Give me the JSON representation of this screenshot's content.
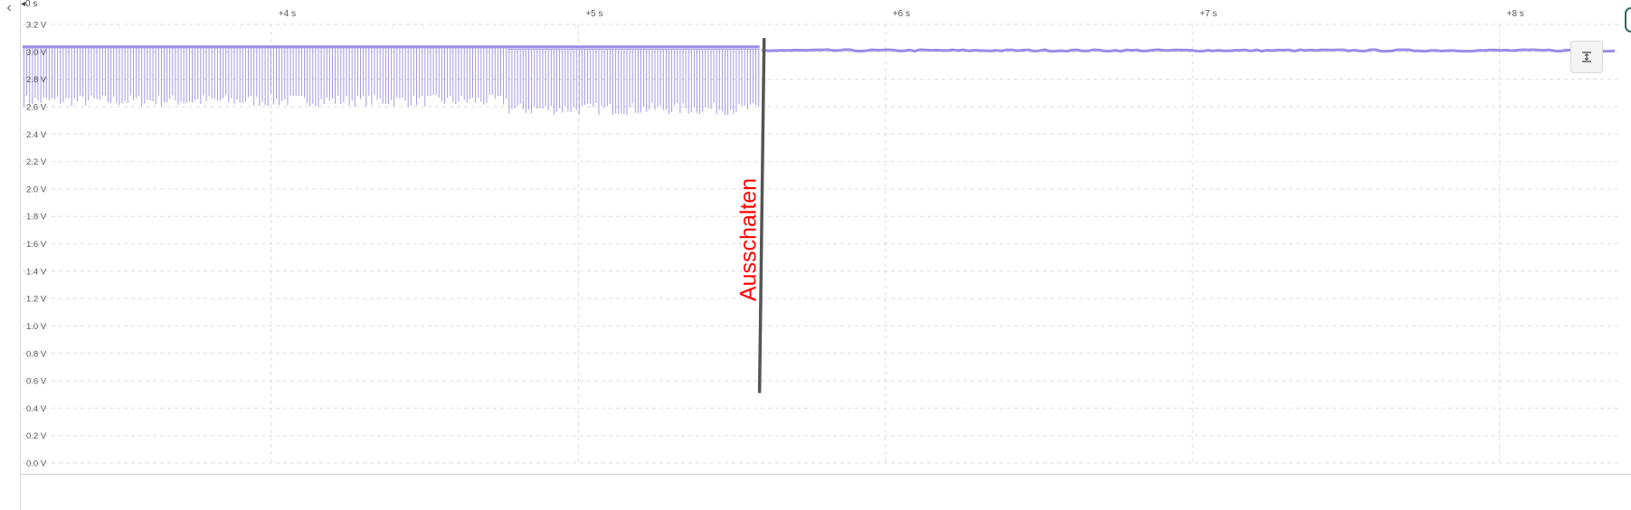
{
  "chart_data": {
    "type": "line",
    "origin_label": "0 s",
    "x_ticks": [
      {
        "value": 3,
        "label": ""
      },
      {
        "value": 4,
        "label": "+4 s"
      },
      {
        "value": 5,
        "label": "+5 s"
      },
      {
        "value": 6,
        "label": "+6 s"
      },
      {
        "value": 7,
        "label": "+7 s"
      },
      {
        "value": 8,
        "label": "+8 s"
      }
    ],
    "xlim": [
      3.19,
      8.39
    ],
    "ylim": [
      0.0,
      3.2
    ],
    "y_ticks": [
      {
        "value": 3.2,
        "label": "3.2 V"
      },
      {
        "value": 3.0,
        "label": "3.0 V"
      },
      {
        "value": 2.8,
        "label": "2.8 V"
      },
      {
        "value": 2.6,
        "label": "2.6 V"
      },
      {
        "value": 2.4,
        "label": "2.4 V"
      },
      {
        "value": 2.2,
        "label": "2.2 V"
      },
      {
        "value": 2.0,
        "label": "2.0 V"
      },
      {
        "value": 1.8,
        "label": "1.8 V"
      },
      {
        "value": 1.6,
        "label": "1.6 V"
      },
      {
        "value": 1.4,
        "label": "1.4 V"
      },
      {
        "value": 1.2,
        "label": "1.2 V"
      },
      {
        "value": 1.0,
        "label": "1.0 V"
      },
      {
        "value": 0.8,
        "label": "0.8 V"
      },
      {
        "value": 0.6,
        "label": "0.6 V"
      },
      {
        "value": 0.4,
        "label": "0.4 V"
      },
      {
        "value": 0.2,
        "label": "0.2 V"
      },
      {
        "value": 0.0,
        "label": "0.0 V"
      }
    ],
    "grid": true,
    "series": [
      {
        "color": "#9b8ce6",
        "segments": [
          {
            "x_start": 3.19,
            "x_end": 4.77,
            "high": 3.03,
            "low": 2.63
          },
          {
            "x_start": 4.77,
            "x_end": 5.59,
            "high": 3.02,
            "low": 2.57
          }
        ],
        "steady": {
          "x_start": 5.6,
          "x_end": 8.39,
          "value": 3.01
        }
      }
    ],
    "annotation": {
      "text": "Ausschalten",
      "text_color": "#ff0000",
      "line_color": "#555555",
      "x_top": 5.605,
      "y_top": 3.1,
      "x_bottom": 5.59,
      "y_bottom": 0.51
    }
  },
  "controls": {
    "back_icon": "chevron-left-icon",
    "fit_icon": "fit-vertical-icon"
  }
}
